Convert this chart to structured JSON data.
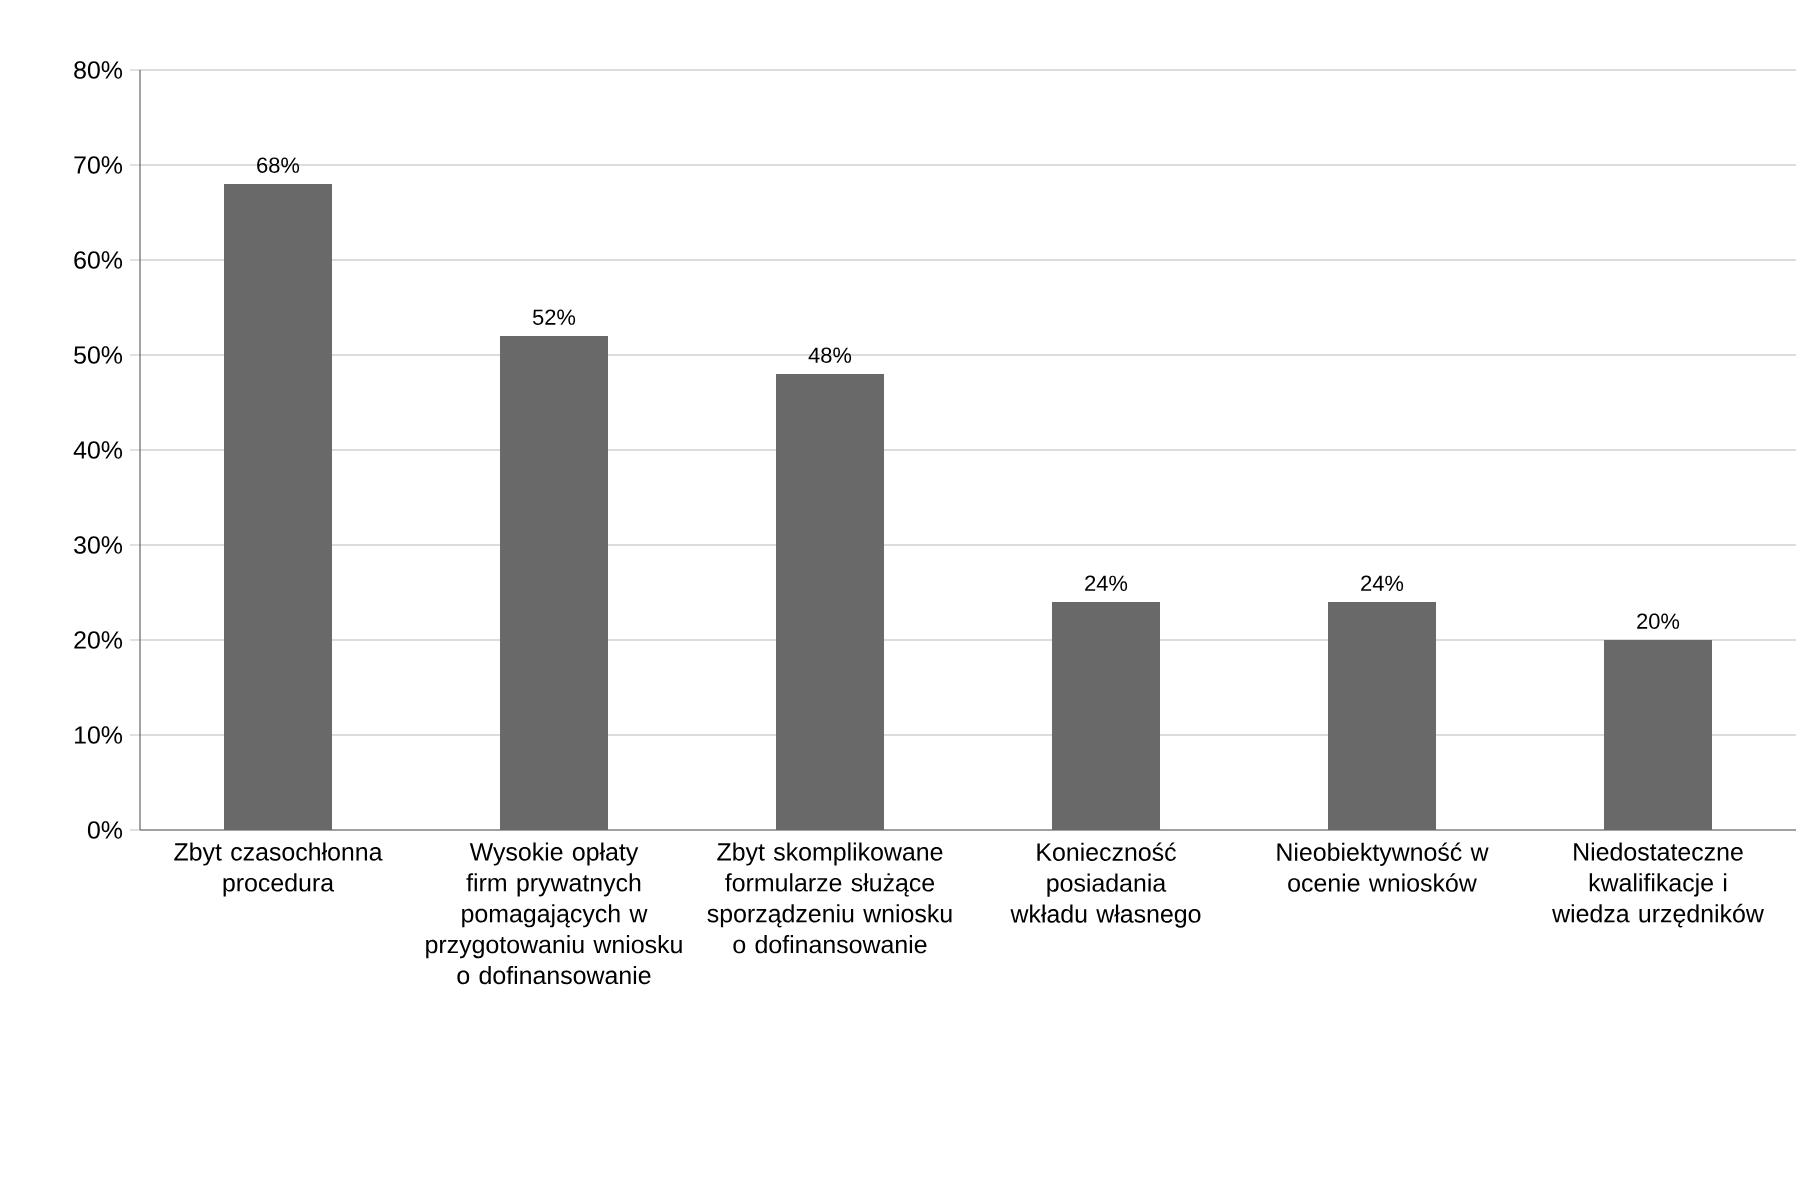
{
  "chart_data": {
    "type": "bar",
    "categories": [
      "Zbyt czasochłonna procedura",
      "Wysokie opłaty firm prywatnych pomagających w przygotowaniu wniosku o dofinansowanie",
      "Zbyt skomplikowane formularze służące sporządzeniu wniosku o dofinansowanie",
      "Konieczność posiadania wkładu własnego",
      "Nieobiektywność w ocenie wniosków",
      "Niedostateczne kwalifikacje i wiedza urzędników"
    ],
    "values": [
      68,
      52,
      48,
      24,
      24,
      20
    ],
    "value_labels": [
      "68%",
      "52%",
      "48%",
      "24%",
      "24%",
      "20%"
    ],
    "color": "#696969",
    "ylim": [
      0,
      80
    ],
    "yticks": [
      {
        "value": 0,
        "label": "0%"
      },
      {
        "value": 10,
        "label": "10%"
      },
      {
        "value": 20,
        "label": "20%"
      },
      {
        "value": 30,
        "label": "30%"
      },
      {
        "value": 40,
        "label": "40%"
      },
      {
        "value": 50,
        "label": "50%"
      },
      {
        "value": 60,
        "label": "60%"
      },
      {
        "value": 70,
        "label": "70%"
      },
      {
        "value": 80,
        "label": "80%"
      }
    ],
    "grid": "y"
  }
}
